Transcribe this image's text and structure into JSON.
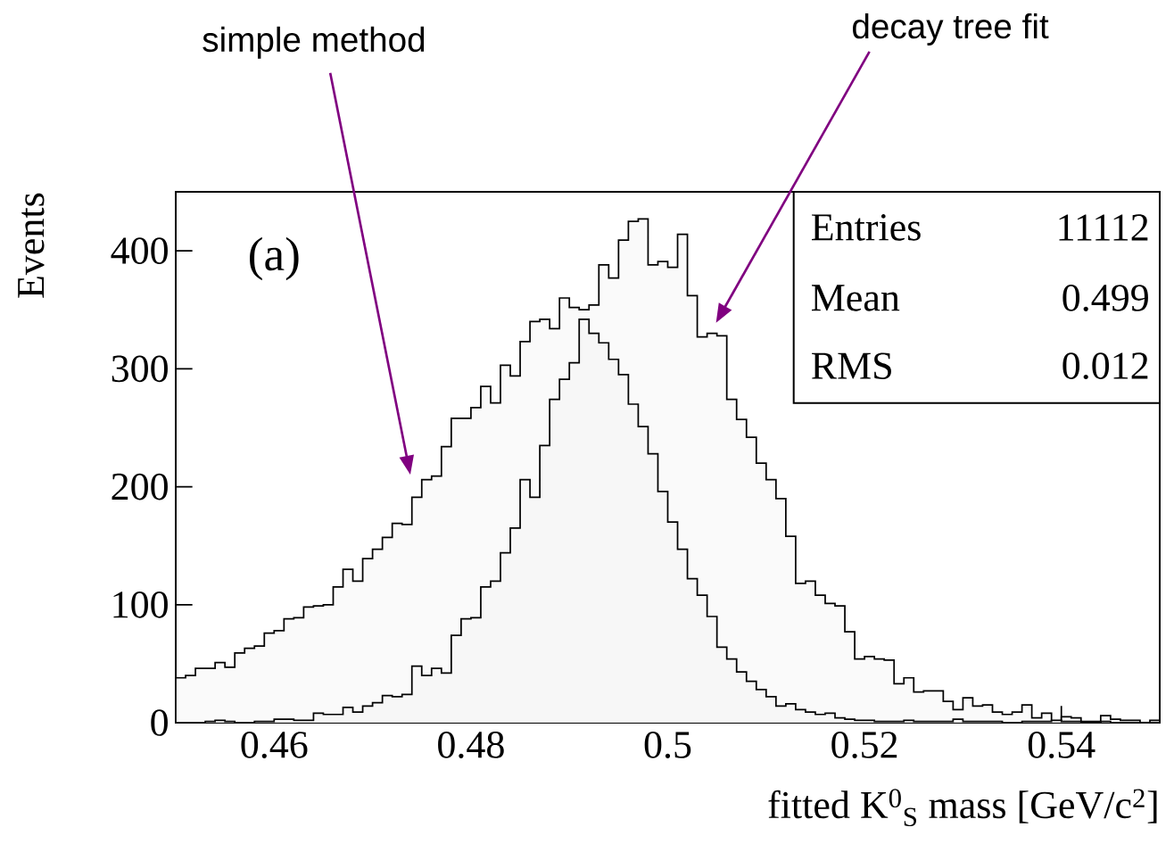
{
  "chart_data": {
    "type": "histogram",
    "xlabel": "fitted K$^{0}$$_{S}$ mass  [GeV/c$^{2}$]",
    "ylabel": "Events",
    "bins": [
      0.45,
      0.451,
      0.452,
      0.453,
      0.454,
      0.455,
      0.456,
      0.457,
      0.458,
      0.459,
      0.46,
      0.461,
      0.462,
      0.463,
      0.464,
      0.465,
      0.466,
      0.467,
      0.468,
      0.469,
      0.47,
      0.471,
      0.472,
      0.473,
      0.474,
      0.475,
      0.476,
      0.477,
      0.478,
      0.479,
      0.48,
      0.481,
      0.482,
      0.483,
      0.484,
      0.485,
      0.486,
      0.487,
      0.488,
      0.489,
      0.49,
      0.491,
      0.492,
      0.493,
      0.494,
      0.495,
      0.496,
      0.497,
      0.498,
      0.499,
      0.5,
      0.501,
      0.502,
      0.503,
      0.504,
      0.505,
      0.506,
      0.507,
      0.508,
      0.509,
      0.51,
      0.511,
      0.512,
      0.513,
      0.514,
      0.515,
      0.516,
      0.517,
      0.518,
      0.519,
      0.52,
      0.521,
      0.522,
      0.523,
      0.524,
      0.525,
      0.526,
      0.527,
      0.528,
      0.529,
      0.53,
      0.531,
      0.532,
      0.533,
      0.534,
      0.535,
      0.536,
      0.537,
      0.538,
      0.539,
      0.54,
      0.541,
      0.542,
      0.543,
      0.544,
      0.545,
      0.546,
      0.547,
      0.548,
      0.549,
      0.55
    ],
    "series": [
      {
        "color": "#000000",
        "values": [
          38,
          40,
          46,
          46,
          51,
          47,
          59,
          63,
          65,
          76,
          78,
          88,
          89,
          98,
          99,
          100,
          115,
          130,
          120,
          139,
          147,
          157,
          169,
          168,
          191,
          206,
          209,
          234,
          258,
          258,
          267,
          285,
          271,
          303,
          294,
          323,
          340,
          342,
          334,
          360,
          352,
          350,
          354,
          388,
          377,
          409,
          425,
          427,
          388,
          391,
          386,
          414,
          362,
          327,
          330,
          328,
          274,
          257,
          242,
          220,
          206,
          190,
          158,
          118,
          120,
          108,
          101,
          99,
          77,
          54,
          56,
          54,
          53,
          33,
          38,
          26,
          27,
          27,
          18,
          11,
          21,
          14,
          15,
          9,
          7,
          9,
          15,
          4,
          8,
          1,
          5,
          4,
          1,
          1,
          6,
          3,
          2,
          2,
          0,
          2
        ]
      },
      {
        "color": "#000000",
        "values": [
          0,
          0,
          0,
          1,
          2,
          1,
          0,
          0,
          1,
          1,
          3,
          3,
          2,
          2,
          8,
          7,
          7,
          13,
          9,
          14,
          17,
          23,
          22,
          24,
          48,
          40,
          46,
          42,
          74,
          88,
          89,
          115,
          120,
          144,
          165,
          206,
          191,
          235,
          274,
          291,
          305,
          342,
          330,
          322,
          308,
          295,
          270,
          251,
          228,
          196,
          170,
          147,
          122,
          108,
          90,
          64,
          54,
          43,
          35,
          28,
          22,
          14,
          16,
          11,
          9,
          7,
          8,
          4,
          3,
          2,
          2,
          1,
          1,
          1,
          2,
          1,
          1,
          1,
          1,
          3,
          1,
          1,
          1,
          1,
          0,
          0,
          1,
          1,
          1,
          2,
          1,
          1,
          0,
          0,
          1,
          0,
          0,
          0,
          0,
          0
        ]
      }
    ],
    "xlim": [
      0.45,
      0.55
    ],
    "ylim": [
      0,
      450
    ],
    "xticks": [
      0.46,
      0.48,
      0.5,
      0.52,
      0.54
    ],
    "yticks": [
      0,
      100,
      200,
      300,
      400
    ],
    "annotations": [
      "(a)",
      "Entries",
      "11112",
      "Mean",
      "0.499",
      "RMS",
      "0.012",
      "simple method",
      "decay tree fit"
    ]
  }
}
